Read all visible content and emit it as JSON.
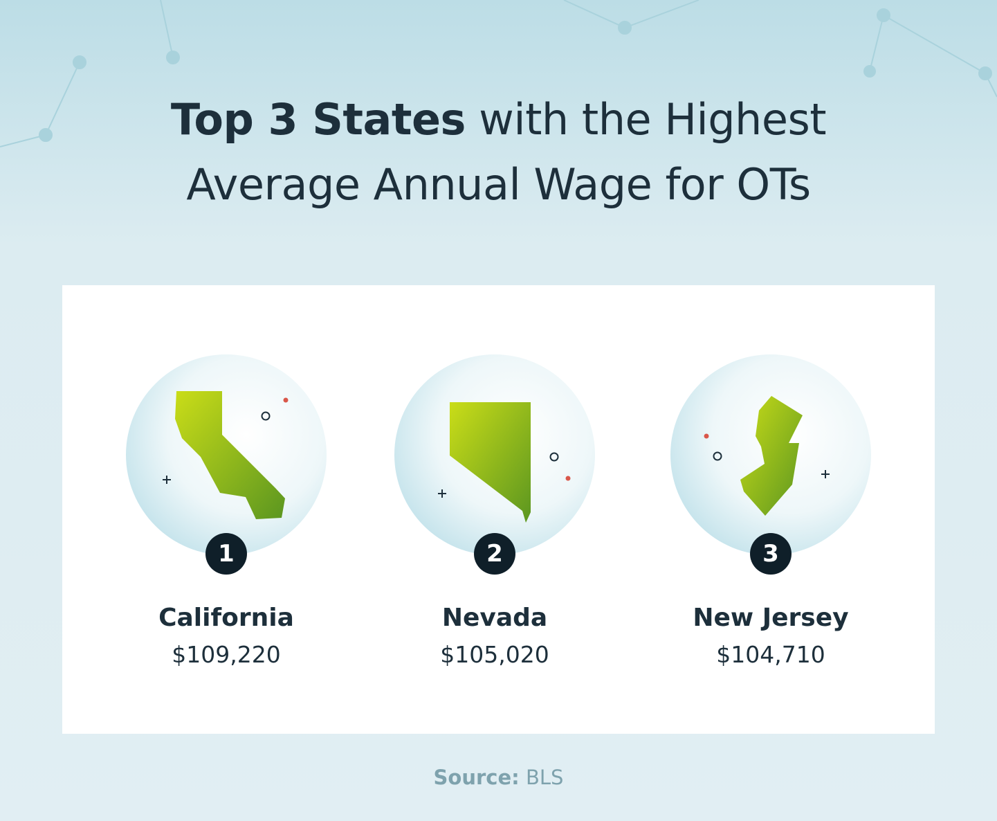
{
  "header": {
    "title_bold": "Top 3 States",
    "title_line1_rest": "with the Highest",
    "title_line2": "Average Annual Wage for OTs"
  },
  "states": [
    {
      "rank": "1",
      "name": "California",
      "wage": "$109,220"
    },
    {
      "rank": "2",
      "name": "Nevada",
      "wage": "$105,020"
    },
    {
      "rank": "3",
      "name": "New Jersey",
      "wage": "$104,710"
    }
  ],
  "footer": {
    "source_label": "Source:",
    "source": "BLS"
  }
}
